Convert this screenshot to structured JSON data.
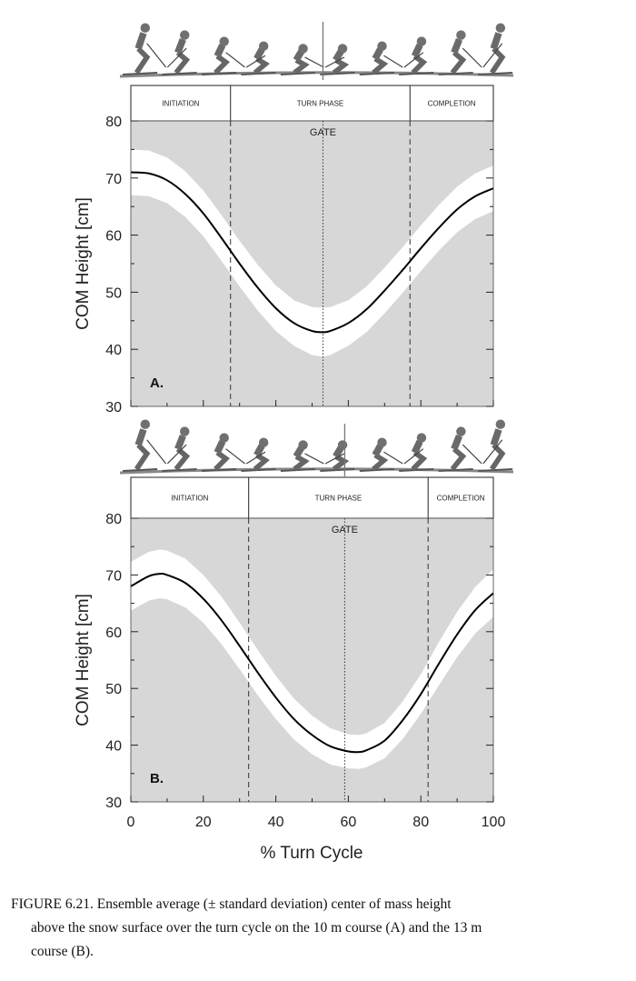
{
  "shared_x_axis": {
    "label": "% Turn Cycle",
    "ticks": [
      0,
      20,
      40,
      60,
      80,
      100
    ]
  },
  "chart_data": [
    {
      "type": "line",
      "panel_label": "A.",
      "ylabel": "COM Height [cm]",
      "xlim": [
        0,
        100
      ],
      "ylim": [
        30,
        80
      ],
      "yticks": [
        30,
        40,
        50,
        60,
        70,
        80
      ],
      "phases": [
        {
          "label": "INITIATION",
          "start": 0,
          "end": 27.5
        },
        {
          "label": "TURN PHASE",
          "start": 27.5,
          "end": 77
        },
        {
          "label": "COMPLETION",
          "start": 77,
          "end": 100
        }
      ],
      "gate": {
        "label": "GATE",
        "x": 53
      },
      "series": [
        {
          "x": [
            0,
            5,
            10,
            15,
            20,
            25,
            30,
            35,
            40,
            45,
            50,
            53,
            55,
            60,
            65,
            70,
            75,
            80,
            85,
            90,
            95,
            100
          ],
          "mean": [
            71.0,
            70.8,
            69.6,
            67.2,
            63.8,
            59.5,
            55.0,
            50.8,
            47.2,
            44.6,
            43.2,
            43.0,
            43.2,
            44.6,
            47.0,
            50.3,
            53.9,
            57.7,
            61.3,
            64.5,
            66.8,
            68.2
          ],
          "sd": [
            4,
            4,
            4,
            4,
            4,
            4,
            4,
            4,
            4,
            4,
            4.2,
            4.3,
            4.2,
            4,
            4,
            4,
            4,
            4,
            4,
            4,
            4,
            4
          ]
        }
      ]
    },
    {
      "type": "line",
      "panel_label": "B.",
      "ylabel": "COM Height [cm]",
      "xlim": [
        0,
        100
      ],
      "ylim": [
        30,
        80
      ],
      "yticks": [
        30,
        40,
        50,
        60,
        70,
        80
      ],
      "phases": [
        {
          "label": "INITIATION",
          "start": 0,
          "end": 32.5
        },
        {
          "label": "TURN PHASE",
          "start": 32.5,
          "end": 82
        },
        {
          "label": "COMPLETION",
          "start": 82,
          "end": 100
        }
      ],
      "gate": {
        "label": "GATE",
        "x": 59
      },
      "series": [
        {
          "x": [
            0,
            5,
            8,
            10,
            15,
            20,
            25,
            30,
            35,
            40,
            45,
            50,
            55,
            60,
            63,
            65,
            70,
            75,
            80,
            85,
            90,
            95,
            100
          ],
          "mean": [
            68.0,
            69.8,
            70.2,
            70.0,
            68.6,
            65.8,
            62.0,
            57.5,
            52.8,
            48.4,
            44.6,
            41.8,
            39.8,
            38.9,
            38.8,
            39.1,
            40.8,
            44.4,
            49.0,
            54.4,
            59.5,
            63.8,
            66.8
          ],
          "sd": [
            4.3,
            4.3,
            4.3,
            4.3,
            4.3,
            4.2,
            4.2,
            4.1,
            4.0,
            3.8,
            3.6,
            3.4,
            3.2,
            3.0,
            3.0,
            3.0,
            3.1,
            3.3,
            3.5,
            3.8,
            4.0,
            4.1,
            4.2
          ]
        }
      ]
    }
  ],
  "caption": {
    "lead": "FIGURE 6.21.",
    "line1": "Ensemble average (± standard deviation) center of mass height",
    "line2": "above the snow surface over the turn cycle on the 10 m course (A) and the 13 m",
    "line3": "course (B)."
  },
  "colors": {
    "background": "#d7d7d7",
    "band": "#ffffff",
    "line": "#000000",
    "phase_fill": "#ffffff"
  },
  "icons": [
    "skier-sequence-icon"
  ]
}
